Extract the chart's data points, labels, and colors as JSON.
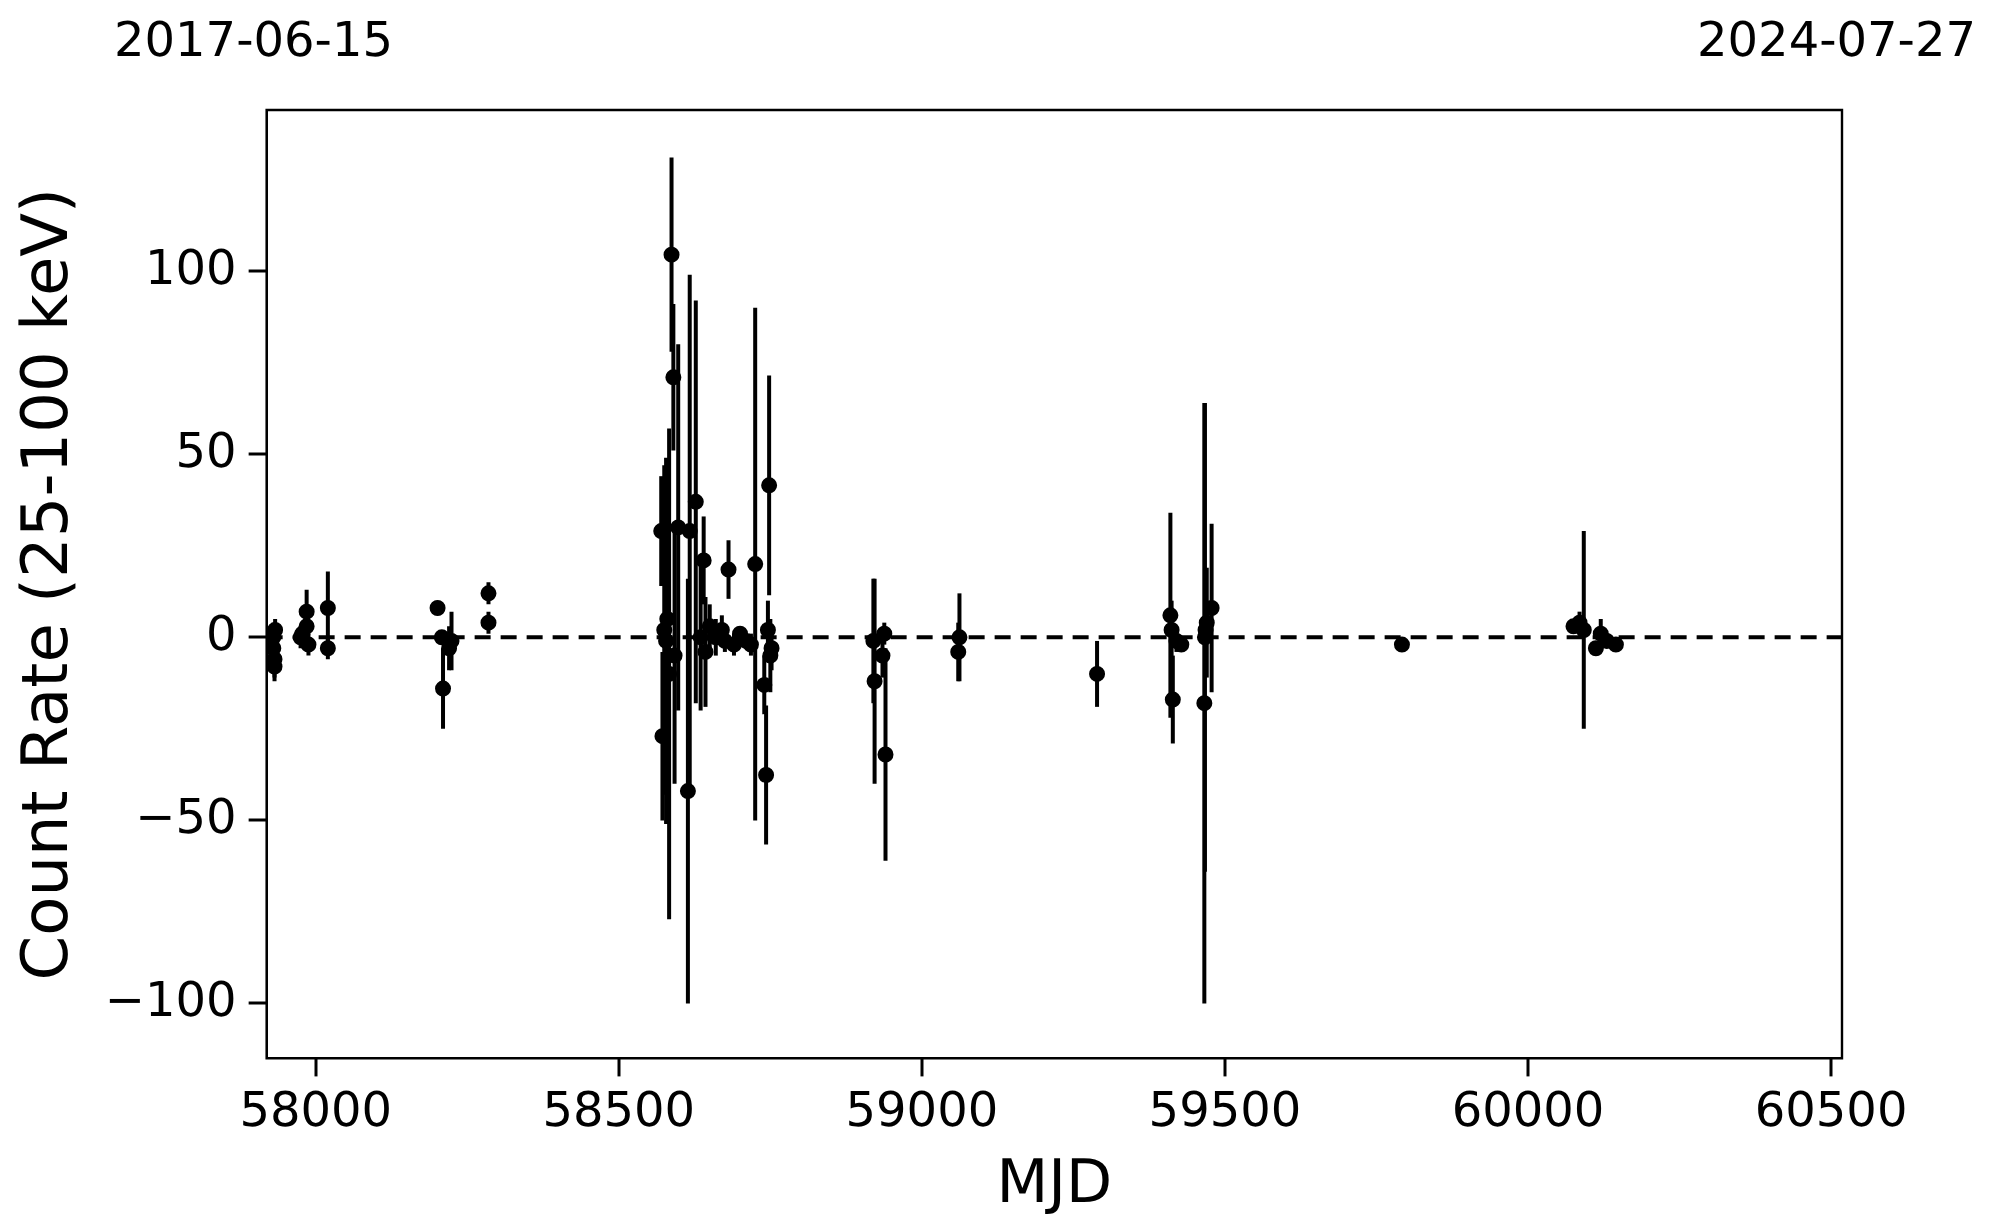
{
  "chart_data": {
    "type": "scatter",
    "xlabel": "MJD",
    "ylabel": "Count Rate (25-100 keV)",
    "annotations": [
      "2017-06-15",
      "2024-07-27"
    ],
    "xlim": [
      57919,
      60518
    ],
    "xticks": [
      58000,
      58500,
      59000,
      59500,
      60000,
      60500
    ],
    "ylim": [
      -115,
      144
    ],
    "yticks": [
      -100,
      -50,
      0,
      50,
      100
    ],
    "grid": false,
    "legend": false,
    "marker": "circle",
    "ref_lines": [
      {
        "axis": "y",
        "value": 0,
        "color": "#000000",
        "line_style": "dashed"
      }
    ],
    "series": [
      {
        "color": "#000000",
        "x": [
          57930,
          57930,
          57932,
          57932,
          57933,
          57975,
          57978,
          57985,
          57985,
          57988,
          58020,
          58020,
          58201,
          58208,
          58210,
          58220,
          58224,
          58285,
          58285,
          58570,
          58572,
          58575,
          58578,
          58580,
          58583,
          58587,
          58590,
          58592,
          58598,
          58614,
          58617,
          58627,
          58635,
          58640,
          58643,
          58650,
          58660,
          58670,
          58675,
          58681,
          58690,
          58700,
          58710,
          58718,
          58725,
          58740,
          58743,
          58746,
          58748,
          58750,
          58752,
          58920,
          58922,
          58935,
          58938,
          58940,
          59060,
          59062,
          59289,
          59410,
          59412,
          59414,
          59420,
          59428,
          59466,
          59467,
          59468,
          59470,
          59478,
          59792,
          60075,
          60085,
          60092,
          60112,
          60120,
          60130,
          60145
        ],
        "values": [
          0,
          -3,
          -6,
          -8,
          2,
          0,
          1,
          7,
          3,
          -2,
          8,
          -3,
          8,
          0,
          -14,
          -3,
          -1,
          12,
          4,
          29,
          -27,
          2,
          -1,
          5,
          -10,
          104.5,
          71,
          -5,
          30,
          -42,
          29,
          37,
          0,
          21,
          -4,
          3,
          0,
          2,
          -1,
          18.5,
          -2,
          1,
          -1,
          -2,
          20,
          -13,
          -37.6,
          2,
          41.5,
          -5,
          -3,
          -1,
          -12,
          -5,
          1,
          -32,
          -4,
          0,
          -10,
          6,
          2,
          -17,
          -1,
          -2,
          -18,
          0,
          2,
          4,
          8,
          -2,
          3,
          4,
          2,
          -3,
          1,
          -1,
          -2
        ],
        "errors": [
          4,
          4,
          5,
          4,
          3,
          3,
          3,
          6,
          4,
          3,
          10,
          3,
          2,
          2,
          11,
          6,
          8,
          3,
          3,
          15,
          23,
          45,
          50,
          40,
          67,
          26.5,
          20,
          35,
          50,
          58,
          70,
          55,
          20,
          12,
          15,
          6,
          5,
          4,
          3,
          8,
          3,
          2,
          2,
          3,
          70,
          8,
          19,
          8,
          30,
          10,
          6,
          17,
          28,
          6,
          3,
          29,
          8,
          12,
          9,
          28,
          8,
          12,
          3,
          2,
          82,
          64,
          10,
          15,
          23,
          1,
          2,
          3,
          27,
          2,
          4,
          2,
          2
        ]
      }
    ]
  }
}
